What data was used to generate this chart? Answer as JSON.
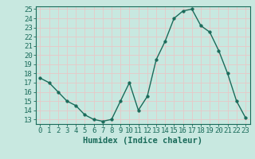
{
  "x": [
    0,
    1,
    2,
    3,
    4,
    5,
    6,
    7,
    8,
    9,
    10,
    11,
    12,
    13,
    14,
    15,
    16,
    17,
    18,
    19,
    20,
    21,
    22,
    23
  ],
  "y": [
    17.5,
    17.0,
    16.0,
    15.0,
    14.5,
    13.5,
    13.0,
    12.8,
    13.0,
    15.0,
    17.0,
    14.0,
    15.5,
    19.5,
    21.5,
    24.0,
    24.8,
    25.0,
    23.2,
    22.5,
    20.5,
    18.0,
    15.0,
    13.2
  ],
  "xlabel": "Humidex (Indice chaleur)",
  "ylim_min": 13,
  "ylim_max": 25,
  "xlim_min": 0,
  "xlim_max": 23,
  "yticks": [
    13,
    14,
    15,
    16,
    17,
    18,
    19,
    20,
    21,
    22,
    23,
    24,
    25
  ],
  "xticks": [
    0,
    1,
    2,
    3,
    4,
    5,
    6,
    7,
    8,
    9,
    10,
    11,
    12,
    13,
    14,
    15,
    16,
    17,
    18,
    19,
    20,
    21,
    22,
    23
  ],
  "xtick_labels": [
    "0",
    "1",
    "2",
    "3",
    "4",
    "5",
    "6",
    "7",
    "8",
    "9",
    "10",
    "11",
    "12",
    "13",
    "14",
    "15",
    "16",
    "17",
    "18",
    "19",
    "20",
    "21",
    "22",
    "23"
  ],
  "line_color": "#1a6b5a",
  "marker_size": 2.5,
  "background_color": "#c8e8e0",
  "grid_color": "#e8c8c8",
  "axis_color": "#1a6b5a",
  "xlabel_fontsize": 7.5,
  "tick_fontsize": 6.5
}
